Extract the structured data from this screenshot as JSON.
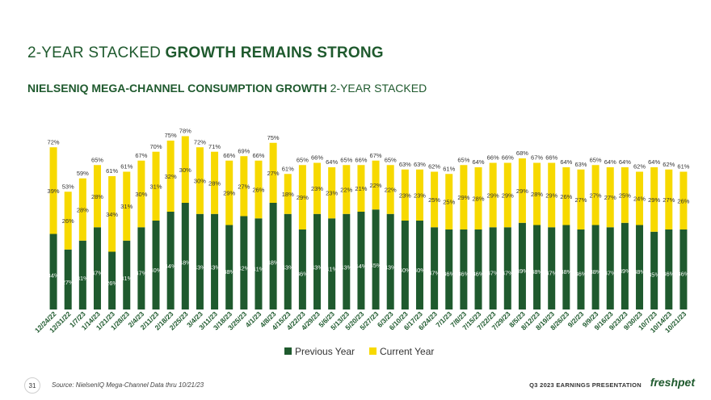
{
  "header": {
    "title_light": "2-YEAR STACKED ",
    "title_bold": "GROWTH REMAINS STRONG",
    "subtitle_bold": "NIELSENIQ MEGA-CHANNEL CONSUMPTION GROWTH ",
    "subtitle_light": "2-YEAR STACKED"
  },
  "footer": {
    "page_number": "31",
    "source": "Source:   NielsenIQ Mega-Channel Data thru 10/21/23",
    "presentation": "Q3 2023 EARNINGS  PRESENTATION",
    "logo": "freshpet"
  },
  "colors": {
    "previous": "#1f5a2e",
    "current": "#f7d900",
    "title": "#1f5a2e"
  },
  "chart_data": {
    "type": "bar",
    "stacked": true,
    "categories": [
      "12/24/22",
      "12/31/22",
      "1/7/23",
      "1/14/23",
      "1/21/23",
      "1/28/23",
      "2/4/23",
      "2/11/23",
      "2/18/23",
      "2/25/23",
      "3/4/23",
      "3/11/23",
      "3/18/23",
      "3/25/23",
      "4/1/23",
      "4/8/23",
      "4/15/23",
      "4/22/23",
      "4/29/23",
      "5/6/23",
      "5/13/23",
      "5/20/23",
      "5/27/23",
      "6/3/23",
      "6/10/23",
      "6/17/23",
      "6/24/23",
      "7/1/23",
      "7/8/23",
      "7/15/23",
      "7/22/23",
      "7/29/23",
      "8/5/23",
      "8/12/23",
      "8/19/23",
      "8/26/23",
      "9/2/23",
      "9/9/23",
      "9/16/23",
      "9/23/23",
      "9/30/23",
      "10/7/23",
      "10/14/23",
      "10/21/23"
    ],
    "series": [
      {
        "name": "Previous Year",
        "values": [
          34,
          27,
          31,
          37,
          26,
          31,
          37,
          40,
          44,
          48,
          43,
          43,
          38,
          42,
          41,
          48,
          43,
          36,
          43,
          41,
          43,
          44,
          45,
          43,
          40,
          40,
          37,
          36,
          36,
          36,
          37,
          37,
          39,
          38,
          37,
          38,
          36,
          38,
          37,
          39,
          38,
          35,
          36,
          36
        ],
        "labels": [
          "34%",
          "27%",
          "31%",
          "37%",
          "26%",
          "31%",
          "37%",
          "40%",
          "44%",
          "48%",
          "43%",
          "43%",
          "38%",
          "42%",
          "41%",
          "48%",
          "43%",
          "36%",
          "43%",
          "41%",
          "43%",
          "44%",
          "45%",
          "43%",
          "40%",
          "40%",
          "37%",
          "36%",
          "36%",
          "36%",
          "37%",
          "37%",
          "39%",
          "38%",
          "37%",
          "38%",
          "36%",
          "38%",
          "37%",
          "39%",
          "38%",
          "35%",
          "36%",
          "36%"
        ]
      },
      {
        "name": "Current Year",
        "values": [
          39,
          26,
          28,
          28,
          34,
          31,
          30,
          31,
          32,
          30,
          30,
          28,
          29,
          27,
          26,
          27,
          18,
          29,
          23,
          23,
          22,
          21,
          22,
          22,
          23,
          23,
          25,
          25,
          29,
          28,
          29,
          29,
          29,
          28,
          29,
          26,
          27,
          27,
          27,
          25,
          24,
          29,
          27,
          26
        ],
        "labels": [
          "39%",
          "26%",
          "28%",
          "28%",
          "34%",
          "31%",
          "30%",
          "31%",
          "32%",
          "30%",
          "30%",
          "28%",
          "29%",
          "27%",
          "26%",
          "27%",
          "18%",
          "29%",
          "23%",
          "23%",
          "22%",
          "21%",
          "22%",
          "22%",
          "23%",
          "23%",
          "25%",
          "25%",
          "29%",
          "28%",
          "29%",
          "29%",
          "29%",
          "28%",
          "29%",
          "26%",
          "27%",
          "27%",
          "27%",
          "25%",
          "24%",
          "29%",
          "27%",
          "26%"
        ]
      }
    ],
    "totals": [
      72,
      53,
      59,
      65,
      61,
      61,
      67,
      70,
      75,
      78,
      72,
      71,
      66,
      69,
      66,
      75,
      61,
      65,
      66,
      64,
      65,
      66,
      67,
      65,
      63,
      63,
      62,
      61,
      65,
      64,
      66,
      66,
      68,
      67,
      66,
      64,
      63,
      65,
      64,
      64,
      62,
      64,
      62,
      61
    ],
    "total_labels": [
      "72%",
      "53%",
      "59%",
      "65%",
      "61%",
      "61%",
      "67%",
      "70%",
      "75%",
      "78%",
      "72%",
      "71%",
      "66%",
      "69%",
      "66%",
      "75%",
      "61%",
      "65%",
      "66%",
      "64%",
      "65%",
      "66%",
      "67%",
      "65%",
      "63%",
      "63%",
      "62%",
      "61%",
      "65%",
      "64%",
      "66%",
      "66%",
      "68%",
      "67%",
      "66%",
      "64%",
      "63%",
      "65%",
      "64%",
      "64%",
      "62%",
      "64%",
      "62%",
      "61%"
    ],
    "ylim": [
      0,
      85
    ],
    "legend_position": "bottom-center",
    "grid": false
  }
}
